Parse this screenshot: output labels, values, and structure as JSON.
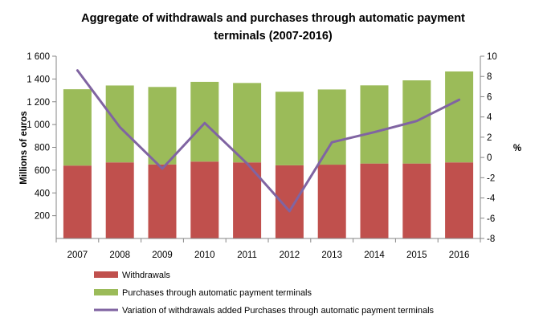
{
  "chart_data": {
    "type": "bar",
    "stacked": true,
    "title_lines": [
      "Aggregate of withdrawals and purchases through automatic payment",
      "terminals (2007-2016)"
    ],
    "categories": [
      "2007",
      "2008",
      "2009",
      "2010",
      "2011",
      "2012",
      "2013",
      "2014",
      "2015",
      "2016"
    ],
    "series": [
      {
        "name": "Withdrawals",
        "type": "bar",
        "axis": "left",
        "color": "#c0504d",
        "values": [
          640,
          668,
          650,
          675,
          668,
          642,
          648,
          658,
          658,
          668
        ]
      },
      {
        "name": "Purchases through automatic payment terminals",
        "type": "bar",
        "axis": "left",
        "color": "#9bbb59",
        "values": [
          670,
          675,
          680,
          700,
          697,
          646,
          660,
          686,
          730,
          798
        ]
      },
      {
        "name": "Variation of withdrawals added Purchases through automatic payment terminals",
        "type": "line",
        "axis": "right",
        "color": "#8064a2",
        "values": [
          8.6,
          3.0,
          -1.1,
          3.4,
          -0.6,
          -5.3,
          1.5,
          2.5,
          3.6,
          5.7
        ]
      }
    ],
    "ylabel": "Millions of euros",
    "ylim": [
      0,
      1600
    ],
    "yticks": [
      200,
      400,
      600,
      800,
      1000,
      1200,
      1400,
      1600
    ],
    "ytick_labels": [
      "200",
      "400",
      "600",
      "800",
      "1 000",
      "1 200",
      "1 400",
      "1 600"
    ],
    "y2label": "%",
    "y2lim": [
      -8,
      10
    ],
    "y2ticks": [
      -8,
      -6,
      -4,
      -2,
      0,
      2,
      4,
      6,
      8,
      10
    ],
    "y2tick_labels": [
      "-8",
      "-6",
      "-4",
      "-2",
      "0",
      "2",
      "4",
      "6",
      "8",
      "10"
    ],
    "grid": false,
    "legend_position": "bottom"
  }
}
